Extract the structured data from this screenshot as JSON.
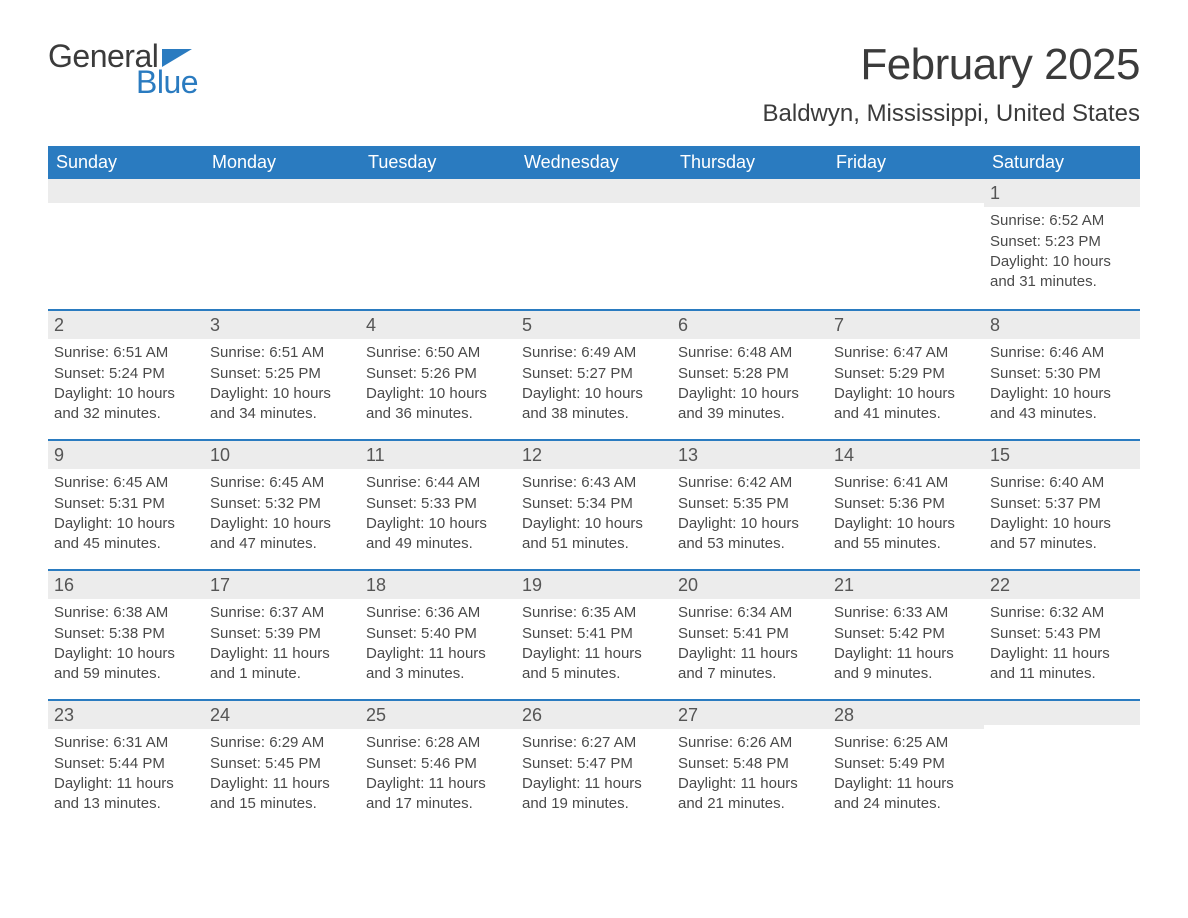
{
  "logo": {
    "word1": "General",
    "word2": "Blue"
  },
  "title": "February 2025",
  "location": "Baldwyn, Mississippi, United States",
  "colors": {
    "header_bg": "#2a7bc0",
    "header_text": "#ffffff",
    "daynum_bg": "#ececec",
    "text": "#4a4a4a",
    "rule": "#2a7bc0",
    "logo_blue": "#2a7bc0"
  },
  "weekdays": [
    "Sunday",
    "Monday",
    "Tuesday",
    "Wednesday",
    "Thursday",
    "Friday",
    "Saturday"
  ],
  "labels": {
    "sunrise_prefix": "Sunrise: ",
    "sunset_prefix": "Sunset: ",
    "daylight_prefix": "Daylight: "
  },
  "weeks": [
    [
      {
        "empty": true
      },
      {
        "empty": true
      },
      {
        "empty": true
      },
      {
        "empty": true
      },
      {
        "empty": true
      },
      {
        "empty": true
      },
      {
        "n": "1",
        "sunrise": "6:52 AM",
        "sunset": "5:23 PM",
        "daylight": "10 hours and 31 minutes."
      }
    ],
    [
      {
        "n": "2",
        "sunrise": "6:51 AM",
        "sunset": "5:24 PM",
        "daylight": "10 hours and 32 minutes."
      },
      {
        "n": "3",
        "sunrise": "6:51 AM",
        "sunset": "5:25 PM",
        "daylight": "10 hours and 34 minutes."
      },
      {
        "n": "4",
        "sunrise": "6:50 AM",
        "sunset": "5:26 PM",
        "daylight": "10 hours and 36 minutes."
      },
      {
        "n": "5",
        "sunrise": "6:49 AM",
        "sunset": "5:27 PM",
        "daylight": "10 hours and 38 minutes."
      },
      {
        "n": "6",
        "sunrise": "6:48 AM",
        "sunset": "5:28 PM",
        "daylight": "10 hours and 39 minutes."
      },
      {
        "n": "7",
        "sunrise": "6:47 AM",
        "sunset": "5:29 PM",
        "daylight": "10 hours and 41 minutes."
      },
      {
        "n": "8",
        "sunrise": "6:46 AM",
        "sunset": "5:30 PM",
        "daylight": "10 hours and 43 minutes."
      }
    ],
    [
      {
        "n": "9",
        "sunrise": "6:45 AM",
        "sunset": "5:31 PM",
        "daylight": "10 hours and 45 minutes."
      },
      {
        "n": "10",
        "sunrise": "6:45 AM",
        "sunset": "5:32 PM",
        "daylight": "10 hours and 47 minutes."
      },
      {
        "n": "11",
        "sunrise": "6:44 AM",
        "sunset": "5:33 PM",
        "daylight": "10 hours and 49 minutes."
      },
      {
        "n": "12",
        "sunrise": "6:43 AM",
        "sunset": "5:34 PM",
        "daylight": "10 hours and 51 minutes."
      },
      {
        "n": "13",
        "sunrise": "6:42 AM",
        "sunset": "5:35 PM",
        "daylight": "10 hours and 53 minutes."
      },
      {
        "n": "14",
        "sunrise": "6:41 AM",
        "sunset": "5:36 PM",
        "daylight": "10 hours and 55 minutes."
      },
      {
        "n": "15",
        "sunrise": "6:40 AM",
        "sunset": "5:37 PM",
        "daylight": "10 hours and 57 minutes."
      }
    ],
    [
      {
        "n": "16",
        "sunrise": "6:38 AM",
        "sunset": "5:38 PM",
        "daylight": "10 hours and 59 minutes."
      },
      {
        "n": "17",
        "sunrise": "6:37 AM",
        "sunset": "5:39 PM",
        "daylight": "11 hours and 1 minute."
      },
      {
        "n": "18",
        "sunrise": "6:36 AM",
        "sunset": "5:40 PM",
        "daylight": "11 hours and 3 minutes."
      },
      {
        "n": "19",
        "sunrise": "6:35 AM",
        "sunset": "5:41 PM",
        "daylight": "11 hours and 5 minutes."
      },
      {
        "n": "20",
        "sunrise": "6:34 AM",
        "sunset": "5:41 PM",
        "daylight": "11 hours and 7 minutes."
      },
      {
        "n": "21",
        "sunrise": "6:33 AM",
        "sunset": "5:42 PM",
        "daylight": "11 hours and 9 minutes."
      },
      {
        "n": "22",
        "sunrise": "6:32 AM",
        "sunset": "5:43 PM",
        "daylight": "11 hours and 11 minutes."
      }
    ],
    [
      {
        "n": "23",
        "sunrise": "6:31 AM",
        "sunset": "5:44 PM",
        "daylight": "11 hours and 13 minutes."
      },
      {
        "n": "24",
        "sunrise": "6:29 AM",
        "sunset": "5:45 PM",
        "daylight": "11 hours and 15 minutes."
      },
      {
        "n": "25",
        "sunrise": "6:28 AM",
        "sunset": "5:46 PM",
        "daylight": "11 hours and 17 minutes."
      },
      {
        "n": "26",
        "sunrise": "6:27 AM",
        "sunset": "5:47 PM",
        "daylight": "11 hours and 19 minutes."
      },
      {
        "n": "27",
        "sunrise": "6:26 AM",
        "sunset": "5:48 PM",
        "daylight": "11 hours and 21 minutes."
      },
      {
        "n": "28",
        "sunrise": "6:25 AM",
        "sunset": "5:49 PM",
        "daylight": "11 hours and 24 minutes."
      },
      {
        "empty": true
      }
    ]
  ]
}
